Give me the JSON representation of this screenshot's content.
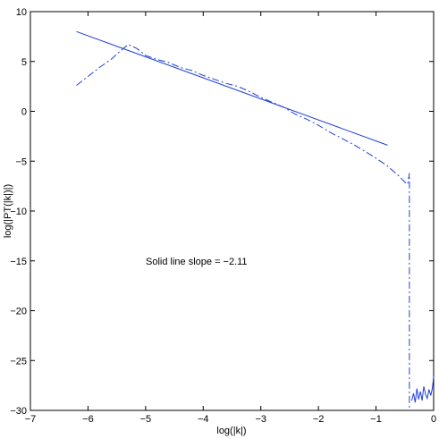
{
  "chart_data": {
    "type": "line",
    "xlabel": "log(|k|)",
    "ylabel": "log(|PT(|k|)|)",
    "xlim": [
      -7,
      0
    ],
    "ylim": [
      -30,
      10
    ],
    "xticks": [
      -7,
      -6,
      -5,
      -4,
      -3,
      -2,
      -1,
      0
    ],
    "yticks": [
      10,
      5,
      0,
      -5,
      -10,
      -15,
      -20,
      -25,
      -30
    ],
    "xtick_labels": [
      "−7",
      "−6",
      "−5",
      "−4",
      "−3",
      "−2",
      "−1",
      "0"
    ],
    "ytick_labels": [
      "10",
      "5",
      "0",
      "−5",
      "−10",
      "−15",
      "−20",
      "−25",
      "−30"
    ],
    "grid": false,
    "annotation": "Solid line slope = −2.11",
    "line_color": "#1f3fd6",
    "series": [
      {
        "style": "solid",
        "kind": "fit",
        "x": [
          -6.2,
          -0.8
        ],
        "y": [
          8.0,
          -3.4
        ]
      },
      {
        "style": "dashdot",
        "kind": "spectrum",
        "x": [
          -6.2,
          -6.0,
          -5.8,
          -5.6,
          -5.45,
          -5.3,
          -5.15,
          -5.0,
          -4.8,
          -4.6,
          -4.4,
          -4.2,
          -4.0,
          -3.8,
          -3.6,
          -3.4,
          -3.2,
          -3.0,
          -2.8,
          -2.6,
          -2.4,
          -2.2,
          -2.0,
          -1.8,
          -1.6,
          -1.4,
          -1.2,
          -1.0,
          -0.8,
          -0.6,
          -0.5,
          -0.45,
          -0.42,
          -0.42
        ],
        "y": [
          2.6,
          3.5,
          4.4,
          5.2,
          6.0,
          6.7,
          6.3,
          5.6,
          5.2,
          4.9,
          4.4,
          4.1,
          3.6,
          3.2,
          2.8,
          2.5,
          2.0,
          1.4,
          0.9,
          0.4,
          -0.3,
          -0.8,
          -1.4,
          -2.1,
          -2.7,
          -3.3,
          -4.0,
          -4.7,
          -5.5,
          -6.5,
          -7.1,
          -7.3,
          -6.2,
          -30.0
        ]
      },
      {
        "style": "solid",
        "kind": "noise",
        "x": [
          -0.38,
          -0.35,
          -0.32,
          -0.29,
          -0.26,
          -0.23,
          -0.2,
          -0.17,
          -0.14,
          -0.11,
          -0.08,
          -0.05,
          -0.02,
          0.0
        ],
        "y": [
          -29.0,
          -28.3,
          -29.2,
          -27.8,
          -28.9,
          -28.1,
          -29.0,
          -27.6,
          -28.4,
          -28.8,
          -27.9,
          -28.5,
          -27.7,
          -26.6
        ]
      }
    ]
  }
}
